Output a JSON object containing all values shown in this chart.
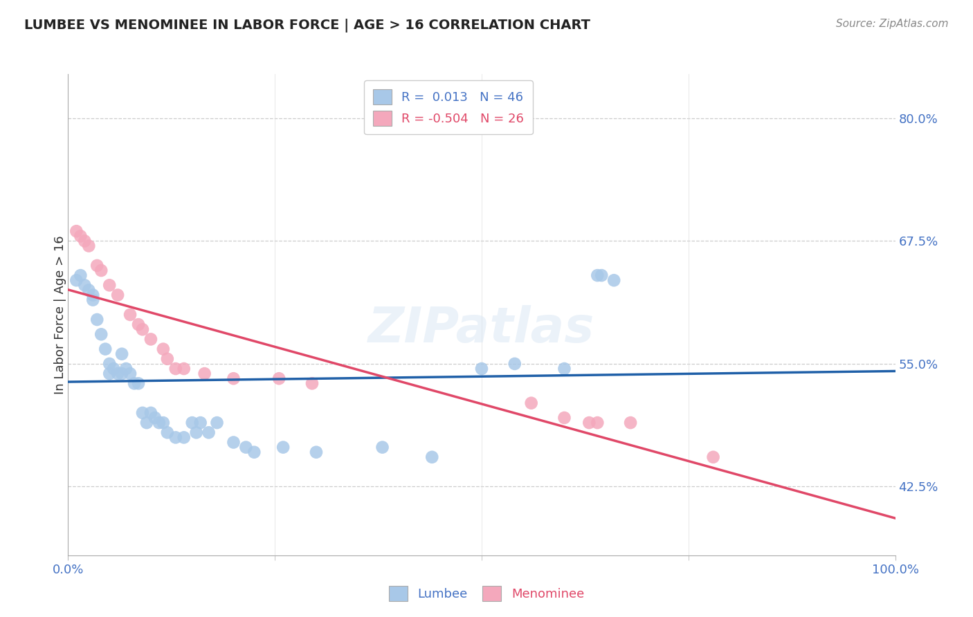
{
  "title": "LUMBEE VS MENOMINEE IN LABOR FORCE | AGE > 16 CORRELATION CHART",
  "source": "Source: ZipAtlas.com",
  "ylabel": "In Labor Force | Age > 16",
  "xlim": [
    0.0,
    1.0
  ],
  "ylim": [
    0.355,
    0.845
  ],
  "yticks": [
    0.425,
    0.55,
    0.675,
    0.8
  ],
  "ytick_labels": [
    "42.5%",
    "55.0%",
    "67.5%",
    "80.0%"
  ],
  "xtick_labels": [
    "0.0%",
    "100.0%"
  ],
  "lumbee_R": 0.013,
  "lumbee_N": 46,
  "menominee_R": -0.504,
  "menominee_N": 26,
  "lumbee_color": "#a8c8e8",
  "menominee_color": "#f4a8bc",
  "lumbee_line_color": "#2060a8",
  "menominee_line_color": "#e04868",
  "lumbee_x": [
    0.01,
    0.015,
    0.02,
    0.025,
    0.03,
    0.03,
    0.035,
    0.04,
    0.045,
    0.05,
    0.05,
    0.055,
    0.06,
    0.065,
    0.065,
    0.07,
    0.075,
    0.08,
    0.085,
    0.09,
    0.095,
    0.1,
    0.105,
    0.11,
    0.115,
    0.12,
    0.13,
    0.14,
    0.15,
    0.155,
    0.16,
    0.17,
    0.18,
    0.2,
    0.215,
    0.225,
    0.26,
    0.3,
    0.38,
    0.44,
    0.5,
    0.54,
    0.6,
    0.64,
    0.645,
    0.66
  ],
  "lumbee_y": [
    0.635,
    0.64,
    0.63,
    0.625,
    0.62,
    0.615,
    0.595,
    0.58,
    0.565,
    0.55,
    0.54,
    0.545,
    0.54,
    0.56,
    0.54,
    0.545,
    0.54,
    0.53,
    0.53,
    0.5,
    0.49,
    0.5,
    0.495,
    0.49,
    0.49,
    0.48,
    0.475,
    0.475,
    0.49,
    0.48,
    0.49,
    0.48,
    0.49,
    0.47,
    0.465,
    0.46,
    0.465,
    0.46,
    0.465,
    0.455,
    0.545,
    0.55,
    0.545,
    0.64,
    0.64,
    0.635
  ],
  "menominee_x": [
    0.01,
    0.015,
    0.02,
    0.025,
    0.035,
    0.04,
    0.05,
    0.06,
    0.075,
    0.085,
    0.09,
    0.1,
    0.115,
    0.12,
    0.13,
    0.14,
    0.165,
    0.2,
    0.255,
    0.295,
    0.56,
    0.6,
    0.63,
    0.64,
    0.68,
    0.78
  ],
  "menominee_y": [
    0.685,
    0.68,
    0.675,
    0.67,
    0.65,
    0.645,
    0.63,
    0.62,
    0.6,
    0.59,
    0.585,
    0.575,
    0.565,
    0.555,
    0.545,
    0.545,
    0.54,
    0.535,
    0.535,
    0.53,
    0.51,
    0.495,
    0.49,
    0.49,
    0.49,
    0.455
  ]
}
